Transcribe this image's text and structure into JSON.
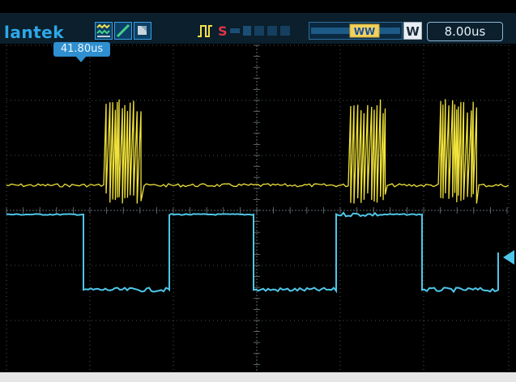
{
  "header": {
    "brand": "lantek",
    "timebase": "8.00us",
    "w_label": "W",
    "memory_label": "WW"
  },
  "trigger": {
    "position_label": "41.80us"
  },
  "icons": {
    "acquire": "waveform-acquire-icon",
    "edge": "edge-slope-icon",
    "trigger_mode": "trigger-mode-icon",
    "pulse": "pulse-icon",
    "status": "status-icon",
    "memory": "memory-position-bar",
    "ch2_level": "channel-2-level-marker"
  },
  "colors": {
    "ch1_trace": "#f0e23a",
    "ch2_trace": "#4fc6e8",
    "grid": "#6f7a82",
    "brand": "#2ea8e8",
    "header_bg": "#0b1f2c"
  }
}
